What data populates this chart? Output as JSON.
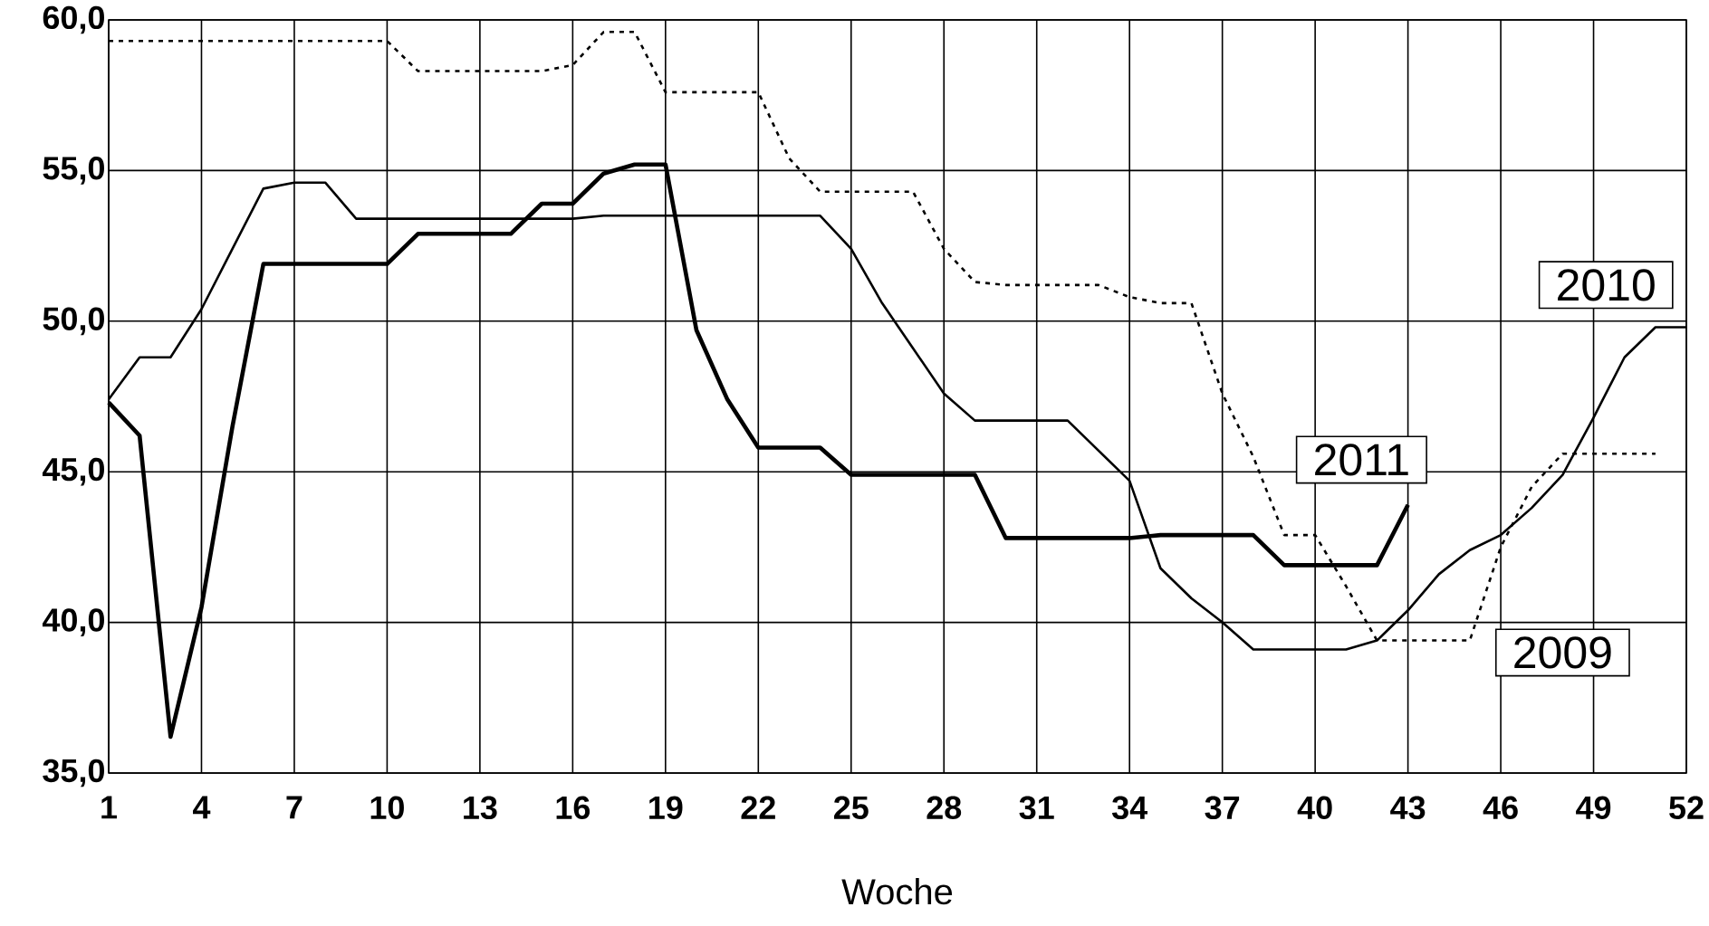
{
  "chart_data": {
    "type": "line",
    "xlabel": "Woche",
    "x": [
      1,
      2,
      3,
      4,
      5,
      6,
      7,
      8,
      9,
      10,
      11,
      12,
      13,
      14,
      15,
      16,
      17,
      18,
      19,
      20,
      21,
      22,
      23,
      24,
      25,
      26,
      27,
      28,
      29,
      30,
      31,
      32,
      33,
      34,
      35,
      36,
      37,
      38,
      39,
      40,
      41,
      42,
      43,
      44,
      45,
      46,
      47,
      48,
      49,
      50,
      51,
      52
    ],
    "series": [
      {
        "name": "2009",
        "color": "#000000",
        "line_style": "dashed",
        "values": [
          59.3,
          59.3,
          59.3,
          59.3,
          59.3,
          59.3,
          59.3,
          59.3,
          59.3,
          59.3,
          58.3,
          58.3,
          58.3,
          58.3,
          58.3,
          58.5,
          59.6,
          59.6,
          57.6,
          57.6,
          57.6,
          57.6,
          55.4,
          54.3,
          54.3,
          54.3,
          54.3,
          52.4,
          51.3,
          51.2,
          51.2,
          51.2,
          51.2,
          50.8,
          50.6,
          50.6,
          47.6,
          45.5,
          42.9,
          42.9,
          41.2,
          39.4,
          39.4,
          39.4,
          39.4,
          42.5,
          44.5,
          45.6,
          45.6,
          45.6,
          45.6,
          null
        ]
      },
      {
        "name": "2010",
        "color": "#000000",
        "line_style": "solid",
        "values": [
          47.4,
          48.8,
          48.8,
          50.4,
          52.4,
          54.4,
          54.6,
          54.6,
          53.4,
          53.4,
          53.4,
          53.4,
          53.4,
          53.4,
          53.4,
          53.4,
          53.5,
          53.5,
          53.5,
          53.5,
          53.5,
          53.5,
          53.5,
          53.5,
          52.4,
          50.6,
          49.1,
          47.6,
          46.7,
          46.7,
          46.7,
          46.7,
          45.7,
          44.7,
          41.8,
          40.8,
          40.0,
          39.1,
          39.1,
          39.1,
          39.1,
          39.4,
          40.4,
          41.6,
          42.4,
          42.9,
          43.8,
          44.9,
          46.8,
          48.8,
          49.8,
          49.8
        ]
      },
      {
        "name": "2011",
        "color": "#000000",
        "line_style": "solid",
        "values": [
          47.3,
          46.2,
          36.2,
          40.5,
          46.5,
          51.9,
          51.9,
          51.9,
          51.9,
          51.9,
          52.9,
          52.9,
          52.9,
          52.9,
          53.9,
          53.9,
          54.9,
          55.2,
          55.2,
          49.7,
          47.4,
          45.8,
          45.8,
          45.8,
          44.9,
          44.9,
          44.9,
          44.9,
          44.9,
          42.8,
          42.8,
          42.8,
          42.8,
          42.8,
          42.9,
          42.9,
          42.9,
          42.9,
          41.9,
          41.9,
          41.9,
          41.9,
          43.9,
          null,
          null,
          null,
          null,
          null,
          null,
          null,
          null,
          null
        ]
      }
    ],
    "xlim": [
      1,
      52
    ],
    "ylim": [
      35,
      60
    ],
    "xticks": [
      1,
      4,
      7,
      10,
      13,
      16,
      19,
      22,
      25,
      28,
      31,
      34,
      37,
      40,
      43,
      46,
      49,
      52
    ],
    "yticks": [
      {
        "value": 35,
        "label": "35,0"
      },
      {
        "value": 40,
        "label": "40,0"
      },
      {
        "value": 45,
        "label": "45,0"
      },
      {
        "value": 50,
        "label": "50,0"
      },
      {
        "value": 55,
        "label": "55,0"
      },
      {
        "value": 60,
        "label": "60,0"
      }
    ],
    "grid": true,
    "legend": false
  }
}
